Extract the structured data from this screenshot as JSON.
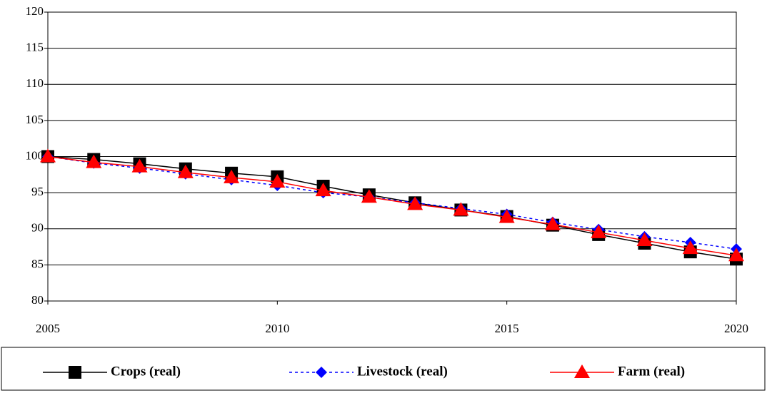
{
  "chart_data": {
    "type": "line",
    "x": [
      2005,
      2006,
      2007,
      2008,
      2009,
      2010,
      2011,
      2012,
      2013,
      2014,
      2015,
      2016,
      2017,
      2018,
      2019,
      2020
    ],
    "xlim": [
      2005,
      2020
    ],
    "xticks": [
      2005,
      2010,
      2015,
      2020
    ],
    "ylim": [
      80,
      120
    ],
    "yticks": [
      80,
      85,
      90,
      95,
      100,
      105,
      110,
      115,
      120
    ],
    "grid": true,
    "legend": "bottom",
    "series": [
      {
        "name": "Crops (real)",
        "color": "#000000",
        "marker": "square",
        "dashed": false,
        "values": [
          100,
          99.6,
          99.0,
          98.3,
          97.7,
          97.2,
          95.9,
          94.7,
          93.6,
          92.6,
          91.7,
          90.5,
          89.2,
          88.0,
          86.8,
          85.8
        ]
      },
      {
        "name": "Livestock (real)",
        "color": "#0000ff",
        "marker": "diamond",
        "dashed": true,
        "values": [
          100,
          99.1,
          98.4,
          97.6,
          96.8,
          96.0,
          95.0,
          94.4,
          93.6,
          92.8,
          92.0,
          90.9,
          89.9,
          88.9,
          88.1,
          87.2
        ]
      },
      {
        "name": "Farm (real)",
        "color": "#ff0000",
        "marker": "triangle",
        "dashed": false,
        "values": [
          100,
          99.2,
          98.6,
          97.8,
          97.1,
          96.5,
          95.3,
          94.4,
          93.4,
          92.6,
          91.6,
          90.6,
          89.5,
          88.4,
          87.3,
          86.3
        ]
      }
    ]
  }
}
